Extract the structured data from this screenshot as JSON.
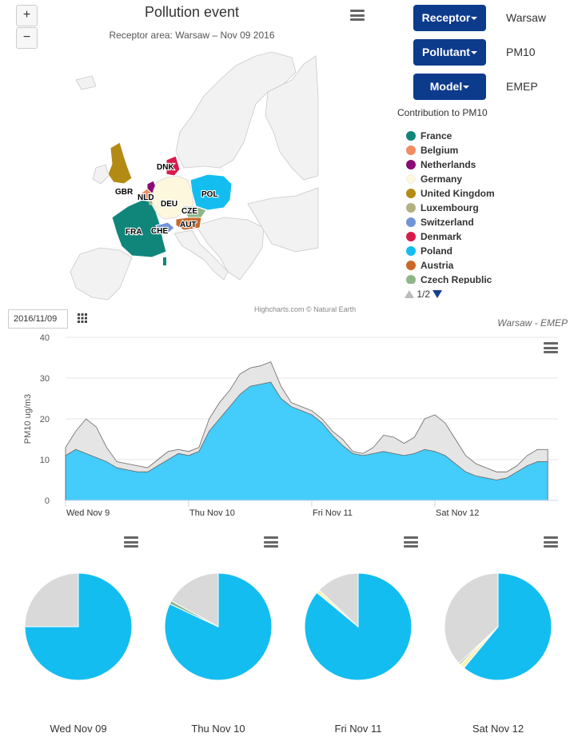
{
  "map": {
    "title": "Pollution event",
    "subtitle": "Receptor area: Warsaw – Nov 09 2016",
    "zoom_in": "+",
    "zoom_out": "−",
    "credits": "Highcharts.com © Natural Earth",
    "country_labels": [
      "DNK",
      "GBR",
      "NLD",
      "DEU",
      "POL",
      "CZE",
      "FRA",
      "CHE",
      "AUT"
    ]
  },
  "controls": {
    "receptor_label": "Receptor",
    "receptor_value": "Warsaw",
    "pollutant_label": "Pollutant",
    "pollutant_value": "PM10",
    "model_label": "Model",
    "model_value": "EMEP"
  },
  "legend": {
    "title": "Contribution to PM10",
    "items": [
      {
        "name": "France",
        "color": "#10857a"
      },
      {
        "name": "Belgium",
        "color": "#f28b61"
      },
      {
        "name": "Netherlands",
        "color": "#8a0a78"
      },
      {
        "name": "Germany",
        "color": "#fdf7dd"
      },
      {
        "name": "United Kingdom",
        "color": "#b38a14"
      },
      {
        "name": "Luxembourg",
        "color": "#b5b082"
      },
      {
        "name": "Switzerland",
        "color": "#7194d6"
      },
      {
        "name": "Denmark",
        "color": "#d91a4c"
      },
      {
        "name": "Poland",
        "color": "#14bdf0"
      },
      {
        "name": "Austria",
        "color": "#c8692a"
      },
      {
        "name": "Czech Republic",
        "color": "#8fb68a"
      }
    ],
    "pager": "1/2"
  },
  "date_input": {
    "value": "2016/11/09"
  },
  "area_chart": {
    "caption": "Warsaw - EMEP"
  },
  "chart_data": [
    {
      "type": "area",
      "title": "",
      "xlabel": "",
      "ylabel": "PM10 ug/m3",
      "ylim": [
        0,
        40
      ],
      "yticks": [
        0,
        10,
        20,
        30,
        40
      ],
      "xtick_labels": [
        "Wed Nov 9",
        "Thu Nov 10",
        "Fri Nov 11",
        "Sat Nov 12"
      ],
      "x": [
        0,
        2,
        4,
        6,
        8,
        10,
        12,
        14,
        16,
        18,
        20,
        22,
        24,
        26,
        28,
        30,
        32,
        34,
        36,
        38,
        40,
        42,
        44,
        46,
        48,
        50,
        52,
        54,
        56,
        58,
        60,
        62,
        64,
        66,
        68,
        70,
        72,
        74,
        76,
        78,
        80,
        82,
        84,
        86,
        88,
        90,
        92,
        94
      ],
      "x_unit": "hours from Nov 9 00:00",
      "grid": true,
      "legend": "none",
      "series": [
        {
          "name": "Other",
          "color": "#e5e5e5",
          "values": [
            13,
            17,
            20,
            18,
            13,
            9.5,
            9,
            8.5,
            8,
            10,
            12,
            12.5,
            12,
            13,
            20,
            24,
            27,
            31,
            32.5,
            33,
            34,
            28,
            24,
            23,
            22,
            20,
            17,
            15,
            12,
            11.5,
            13,
            16,
            15.5,
            14,
            15.5,
            20,
            21,
            19,
            15,
            11,
            9,
            8,
            7,
            7,
            8.5,
            11,
            12.5,
            12.5
          ]
        },
        {
          "name": "Poland",
          "color": "#44ccfa",
          "values": [
            11,
            12.5,
            11.5,
            10.5,
            9.5,
            8,
            7.5,
            7,
            7,
            8.5,
            10,
            11.5,
            11,
            12,
            17,
            20,
            23,
            26,
            28,
            28.5,
            29,
            25,
            23,
            22,
            21,
            19,
            16,
            13.5,
            11.5,
            11,
            11.5,
            12,
            11.5,
            11,
            11.5,
            12.5,
            12,
            11,
            9,
            7,
            6,
            5.5,
            5,
            5.5,
            7,
            8.5,
            9.5,
            9.5
          ]
        }
      ]
    },
    {
      "type": "pie",
      "title": "Wed Nov 09",
      "slices": [
        {
          "name": "Poland",
          "value": 75,
          "color": "#14bdf0"
        },
        {
          "name": "Other",
          "value": 25,
          "color": "#d9d9d9"
        }
      ]
    },
    {
      "type": "pie",
      "title": "Thu Nov 10",
      "slices": [
        {
          "name": "Poland",
          "value": 82,
          "color": "#14bdf0"
        },
        {
          "name": "Czech Republic",
          "value": 1,
          "color": "#8fb68a"
        },
        {
          "name": "Other",
          "value": 17,
          "color": "#d9d9d9"
        }
      ]
    },
    {
      "type": "pie",
      "title": "Fri Nov 11",
      "slices": [
        {
          "name": "Poland",
          "value": 86,
          "color": "#14bdf0"
        },
        {
          "name": "Germany",
          "value": 1,
          "color": "#fdf2b5"
        },
        {
          "name": "Other",
          "value": 13,
          "color": "#d9d9d9"
        }
      ]
    },
    {
      "type": "pie",
      "title": "Sat Nov 12",
      "slices": [
        {
          "name": "Poland",
          "value": 61,
          "color": "#14bdf0"
        },
        {
          "name": "Germany",
          "value": 1.5,
          "color": "#fdf2b5"
        },
        {
          "name": "Czech Republic",
          "value": 0.5,
          "color": "#8fb68a"
        },
        {
          "name": "Other",
          "value": 37,
          "color": "#d9d9d9"
        }
      ]
    }
  ]
}
